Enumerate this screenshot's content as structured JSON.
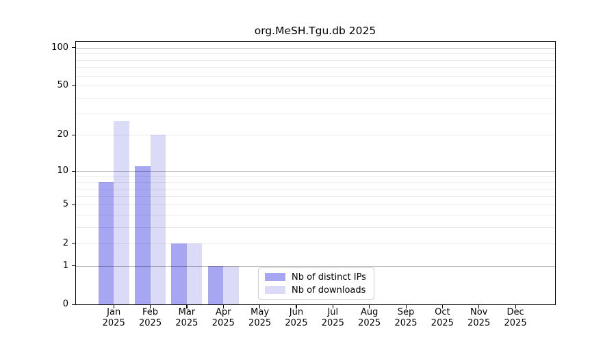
{
  "title": "org.MeSH.Tgu.db 2025",
  "chart_data": {
    "type": "bar",
    "title": "org.MeSH.Tgu.db 2025",
    "categories": [
      {
        "month": "Jan",
        "year": "2025"
      },
      {
        "month": "Feb",
        "year": "2025"
      },
      {
        "month": "Mar",
        "year": "2025"
      },
      {
        "month": "Apr",
        "year": "2025"
      },
      {
        "month": "May",
        "year": "2025"
      },
      {
        "month": "Jun",
        "year": "2025"
      },
      {
        "month": "Jul",
        "year": "2025"
      },
      {
        "month": "Aug",
        "year": "2025"
      },
      {
        "month": "Sep",
        "year": "2025"
      },
      {
        "month": "Oct",
        "year": "2025"
      },
      {
        "month": "Nov",
        "year": "2025"
      },
      {
        "month": "Dec",
        "year": "2025"
      }
    ],
    "series": [
      {
        "name": "Nb of distinct IPs",
        "color": "#a6a6f2",
        "values": [
          8,
          11,
          2,
          1,
          0,
          0,
          0,
          0,
          0,
          0,
          0,
          0
        ]
      },
      {
        "name": "Nb of downloads",
        "color": "#dbdbf8",
        "values": [
          26,
          20,
          2,
          1,
          0,
          0,
          0,
          0,
          0,
          0,
          0,
          0
        ]
      }
    ],
    "xlabel": "",
    "ylabel": "",
    "yscale": "log1p",
    "ylim": [
      0,
      113
    ],
    "ytick_labels": [
      0,
      1,
      2,
      5,
      10,
      20,
      50,
      100
    ],
    "major_gridlines": [
      1,
      10,
      100
    ],
    "minor_gridlines": [
      2,
      3,
      4,
      5,
      6,
      7,
      8,
      9,
      20,
      30,
      40,
      50,
      60,
      70,
      80,
      90
    ],
    "grid": "horizontal",
    "legend_position": "lower-center-inside"
  }
}
